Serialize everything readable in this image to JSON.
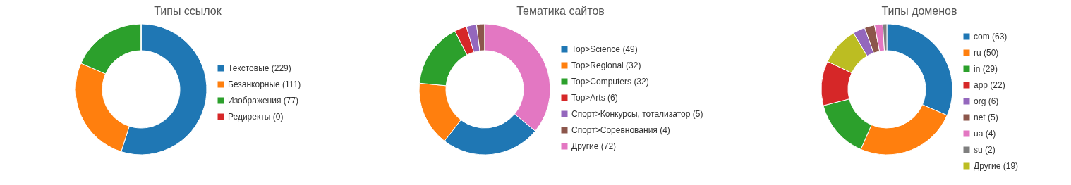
{
  "chart_data": [
    {
      "type": "donut",
      "title": "Типы ссылок",
      "categories": [
        "Текстовые (229)",
        "Безанкорные (111)",
        "Изображения (77)",
        "Редиректы (0)"
      ],
      "values": [
        229,
        111,
        77,
        0
      ],
      "colors": [
        "#1f77b4",
        "#ff7f0e",
        "#2ca02c",
        "#d62728"
      ],
      "legend": "right"
    },
    {
      "type": "donut",
      "title": "Тематика сайтов",
      "categories": [
        "Top>Science (49)",
        "Top>Regional (32)",
        "Top>Computers (32)",
        "Top>Arts (6)",
        "Спорт>Конкурсы, тотализатор (5)",
        "Спорт>Соревнования (4)",
        "Другие (72)"
      ],
      "values": [
        49,
        32,
        32,
        6,
        5,
        4,
        72
      ],
      "colors": [
        "#1f77b4",
        "#ff7f0e",
        "#2ca02c",
        "#d62728",
        "#9467bd",
        "#8c564b",
        "#e377c2"
      ],
      "legend": "right"
    },
    {
      "type": "donut",
      "title": "Типы доменов",
      "categories": [
        "com (63)",
        "ru (50)",
        "in (29)",
        "app (22)",
        "org (6)",
        "net (5)",
        "ua (4)",
        "su (2)",
        "Другие (19)"
      ],
      "values": [
        63,
        50,
        29,
        22,
        6,
        5,
        4,
        2,
        19
      ],
      "colors": [
        "#1f77b4",
        "#ff7f0e",
        "#2ca02c",
        "#d62728",
        "#9467bd",
        "#8c564b",
        "#e377c2",
        "#7f7f7f",
        "#bcbd22"
      ],
      "legend": "right"
    }
  ]
}
